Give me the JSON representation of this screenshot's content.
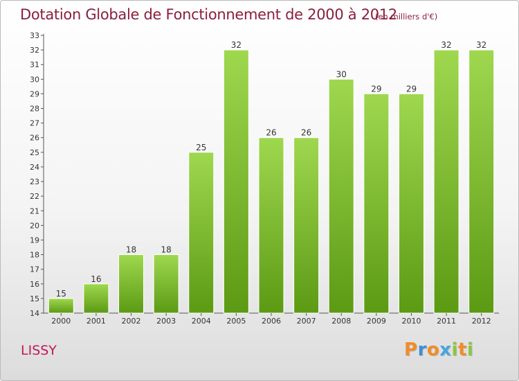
{
  "header": {
    "title": "Dotation Globale de Fonctionnement de 2000 à 2012",
    "subtitle": "(en milliers d'€)"
  },
  "footer": {
    "commune": "LISSY",
    "logo": {
      "text": "Proxiti",
      "letters": [
        {
          "char": "P",
          "color": "#f28c28"
        },
        {
          "char": "r",
          "color": "#3a8fd6"
        },
        {
          "char": "o",
          "color": "#f28c28"
        },
        {
          "char": "x",
          "color": "#4aa3df"
        },
        {
          "char": "i",
          "color": "#8cc63f"
        },
        {
          "char": "t",
          "color": "#f28c28"
        },
        {
          "char": "i",
          "color": "#8cc63f"
        }
      ]
    }
  },
  "colors": {
    "bar_light": "#9fd84f",
    "bar_dark": "#5c9a14",
    "title": "#8a1f3c",
    "commune": "#c2185b"
  },
  "chart_data": {
    "type": "bar",
    "title": "Dotation Globale de Fonctionnement de 2000 à 2012",
    "subtitle": "(en milliers d'€)",
    "xlabel": "",
    "ylabel": "",
    "categories": [
      "2000",
      "2001",
      "2002",
      "2003",
      "2004",
      "2005",
      "2006",
      "2007",
      "2008",
      "2009",
      "2010",
      "2011",
      "2012"
    ],
    "values": [
      15,
      16,
      18,
      18,
      25,
      32,
      26,
      26,
      30,
      29,
      29,
      32,
      32
    ],
    "ylim": [
      14,
      33
    ],
    "yticks": [
      14,
      15,
      16,
      17,
      18,
      19,
      20,
      21,
      22,
      23,
      24,
      25,
      26,
      27,
      28,
      29,
      30,
      31,
      32,
      33
    ],
    "grid": false,
    "legend": "none",
    "data_labels": true
  }
}
